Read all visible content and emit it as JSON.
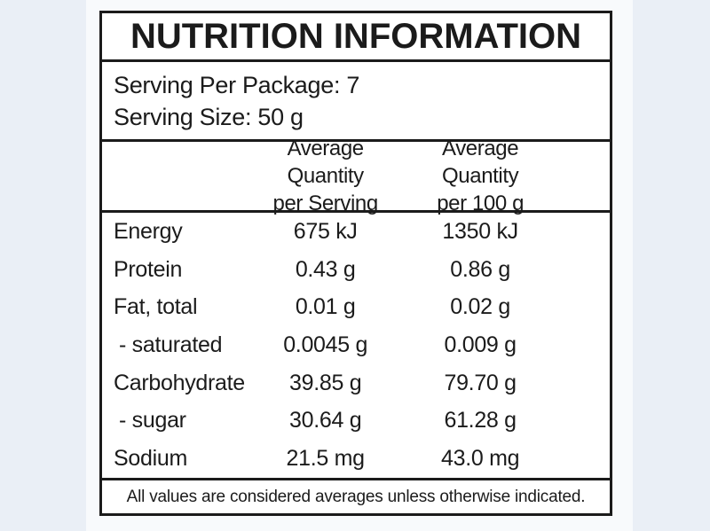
{
  "colors": {
    "page_background": "#eaeff6",
    "panel_background": "#f8fafc",
    "label_background": "#ffffff",
    "border_and_text": "#1b1b1b"
  },
  "label": {
    "title": "NUTRITION INFORMATION",
    "serving": {
      "per_package": "Serving Per Package: 7",
      "size": "Serving Size: 50 g"
    },
    "columns": [
      {
        "line1": "Average Quantity",
        "line2": "per Serving"
      },
      {
        "line1": "Average Quantity",
        "line2": "per 100 g"
      }
    ],
    "rows": [
      {
        "nutrient": "Energy",
        "per_serving": "675 kJ",
        "per_100g": "1350 kJ"
      },
      {
        "nutrient": "Protein",
        "per_serving": "0.43 g",
        "per_100g": "0.86 g"
      },
      {
        "nutrient": "Fat, total",
        "per_serving": "0.01 g",
        "per_100g": "0.02 g"
      },
      {
        "nutrient": "- saturated",
        "per_serving": "0.0045 g",
        "per_100g": "0.009 g"
      },
      {
        "nutrient": "Carbohydrate",
        "per_serving": "39.85 g",
        "per_100g": "79.70 g"
      },
      {
        "nutrient": "- sugar",
        "per_serving": "30.64 g",
        "per_100g": "61.28 g"
      },
      {
        "nutrient": "Sodium",
        "per_serving": "21.5 mg",
        "per_100g": "43.0 mg"
      }
    ],
    "footnote": "All values are considered averages unless otherwise indicated."
  }
}
